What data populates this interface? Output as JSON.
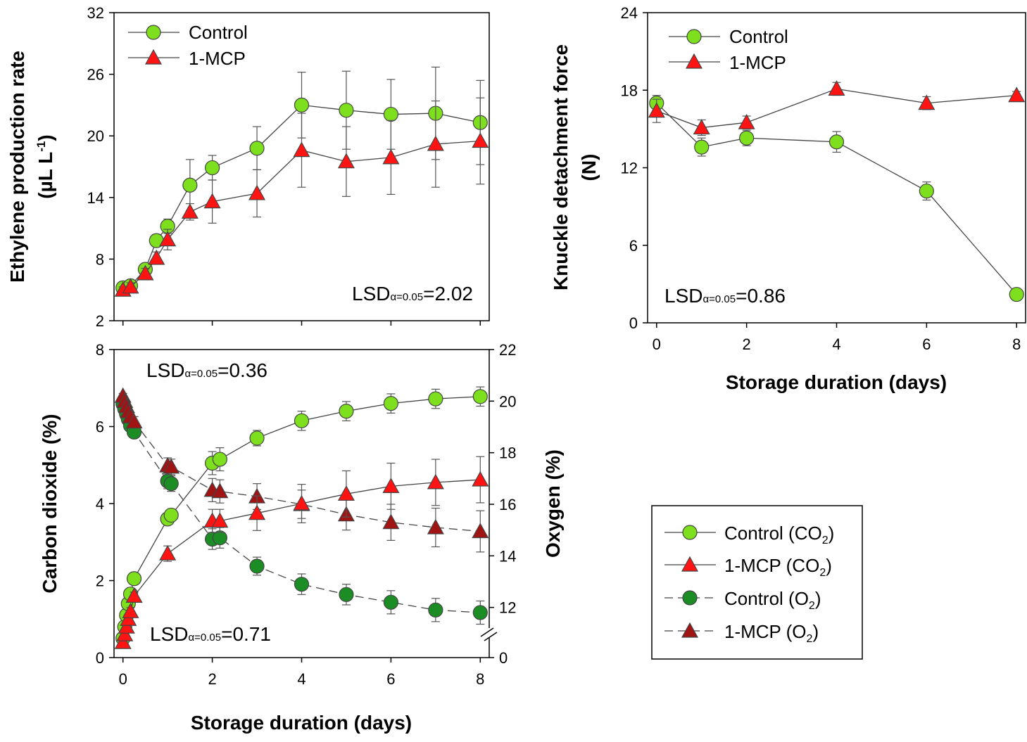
{
  "chart_data": [
    {
      "id": "A",
      "type": "line",
      "ylabel_line1": "Ethylene production rate",
      "ylabel_line2": "(µL L-1)",
      "ylabel_unit_base": "(µL L",
      "ylabel_unit_sup": "-1",
      "ylabel_unit_end": ")",
      "xlabel": "",
      "xlim": [
        -0.2,
        8.2
      ],
      "ylim": [
        2,
        32
      ],
      "yticks": [
        "2",
        "8",
        "14",
        "20",
        "26",
        "32"
      ],
      "legend": [
        "Control",
        "1-MCP"
      ],
      "lsd": {
        "base": "LSD",
        "sub": "α=0.05",
        "value": "=2.02"
      },
      "series": [
        {
          "name": "Control",
          "color": "#7ddf1e",
          "marker": "circle",
          "dash": "",
          "x": [
            0,
            0.17,
            0.5,
            0.75,
            1,
            1.5,
            2,
            3,
            4,
            5,
            6,
            7,
            8
          ],
          "y": [
            5.2,
            5.4,
            7.0,
            9.8,
            11.2,
            15.2,
            16.9,
            18.8,
            23.0,
            22.5,
            22.1,
            22.2,
            21.3
          ],
          "err": [
            0.3,
            0.4,
            0.5,
            0.6,
            0.7,
            2.5,
            1.2,
            2.1,
            3.2,
            3.8,
            3.4,
            4.5,
            4.1
          ]
        },
        {
          "name": "1-MCP",
          "color": "#ff1414",
          "marker": "triangle",
          "dash": "",
          "x": [
            0,
            0.17,
            0.5,
            0.75,
            1,
            1.5,
            2,
            3,
            4,
            5,
            6,
            7,
            8
          ],
          "y": [
            5.0,
            5.3,
            6.6,
            8.1,
            9.9,
            12.6,
            13.6,
            14.4,
            18.6,
            17.5,
            17.9,
            19.2,
            19.5
          ],
          "err": [
            0.3,
            0.4,
            0.5,
            0.6,
            1.0,
            0.8,
            2.1,
            2.3,
            3.6,
            3.4,
            3.6,
            4.2,
            4.2
          ]
        }
      ]
    },
    {
      "id": "B",
      "type": "line",
      "ylabel_line1": "Knuckle detachment force",
      "ylabel_line2": "(N)",
      "xlabel": "Storage duration (days)",
      "xlim": [
        -0.2,
        8.2
      ],
      "ylim": [
        0,
        24
      ],
      "xticks": [
        "0",
        "2",
        "4",
        "6",
        "8"
      ],
      "yticks": [
        "0",
        "6",
        "12",
        "18",
        "24"
      ],
      "legend": [
        "Control",
        "1-MCP"
      ],
      "lsd": {
        "base": "LSD",
        "sub": "α=0.05",
        "value": "=0.86"
      },
      "series": [
        {
          "name": "Control",
          "color": "#7ddf1e",
          "marker": "circle",
          "dash": "",
          "x": [
            0,
            1,
            2,
            4,
            6,
            8
          ],
          "y": [
            17.0,
            13.6,
            14.3,
            14.0,
            10.2,
            2.2
          ],
          "err": [
            0.6,
            0.7,
            0.6,
            0.8,
            0.7,
            0.3
          ]
        },
        {
          "name": "1-MCP",
          "color": "#ff1414",
          "marker": "triangle",
          "dash": "",
          "x": [
            0,
            1,
            2,
            4,
            6,
            8
          ],
          "y": [
            16.4,
            15.1,
            15.5,
            18.1,
            17.0,
            17.6
          ],
          "err": [
            0.9,
            0.6,
            0.5,
            0.5,
            0.5,
            0.3
          ]
        }
      ]
    },
    {
      "id": "C",
      "type": "line",
      "ylabel": "Carbon dioxide (%)",
      "y2label": "Oxygen (%)",
      "xlabel": "Storage duration (days)",
      "xlim": [
        -0.2,
        8.2
      ],
      "ylim": [
        0,
        8
      ],
      "y2lim": [
        0,
        22
      ],
      "y2_plot_range": [
        10,
        22
      ],
      "xticks": [
        "0",
        "2",
        "4",
        "6",
        "8"
      ],
      "yticks": [
        "0",
        "2",
        "4",
        "6",
        "8"
      ],
      "y2ticks": [
        "0",
        "12",
        "14",
        "16",
        "18",
        "20",
        "22"
      ],
      "lsd_top": {
        "base": "LSD",
        "sub": "α=0.05",
        "value": "=0.36"
      },
      "lsd_bottom": {
        "base": "LSD",
        "sub": "α=0.05",
        "value": "=0.71"
      },
      "series": [
        {
          "name": "Control (CO2)",
          "color": "#7ddf1e",
          "marker": "circle",
          "dash": "",
          "axis": "left",
          "x": [
            0,
            0.04,
            0.08,
            0.12,
            0.17,
            0.25,
            1,
            1.08,
            2,
            2.17,
            3,
            4,
            5,
            6,
            7,
            8
          ],
          "y": [
            0.5,
            0.8,
            1.1,
            1.4,
            1.65,
            2.05,
            3.6,
            3.7,
            5.05,
            5.15,
            5.7,
            6.15,
            6.4,
            6.6,
            6.72,
            6.78
          ],
          "err": [
            0.05,
            0.05,
            0.05,
            0.08,
            0.1,
            0.1,
            0.15,
            0.15,
            0.3,
            0.3,
            0.2,
            0.25,
            0.25,
            0.25,
            0.25,
            0.25
          ]
        },
        {
          "name": "1-MCP (CO2)",
          "color": "#ff1414",
          "marker": "triangle",
          "dash": "",
          "axis": "left",
          "x": [
            0,
            0.04,
            0.08,
            0.12,
            0.17,
            0.25,
            1,
            2,
            2.17,
            3,
            4,
            5,
            6,
            7,
            8
          ],
          "y": [
            0.4,
            0.6,
            0.8,
            1.0,
            1.2,
            1.6,
            2.7,
            3.55,
            3.55,
            3.75,
            4.0,
            4.25,
            4.45,
            4.55,
            4.62
          ],
          "err": [
            0.05,
            0.05,
            0.05,
            0.08,
            0.1,
            0.1,
            0.2,
            0.3,
            0.3,
            0.45,
            0.5,
            0.6,
            0.6,
            0.6,
            0.6
          ]
        },
        {
          "name": "Control (O2)",
          "color": "#1c8c24",
          "marker": "circle",
          "dash": "12,7",
          "axis": "right",
          "x": [
            0,
            0.04,
            0.08,
            0.12,
            0.17,
            0.25,
            1,
            1.08,
            2,
            2.17,
            3,
            4,
            5,
            6,
            7,
            8
          ],
          "y": [
            19.9,
            19.7,
            19.5,
            19.3,
            19.05,
            18.8,
            16.9,
            16.8,
            14.65,
            14.7,
            13.6,
            12.9,
            12.5,
            12.2,
            11.9,
            11.8
          ],
          "err": [
            0.1,
            0.1,
            0.1,
            0.1,
            0.15,
            0.2,
            0.3,
            0.3,
            0.4,
            0.4,
            0.35,
            0.4,
            0.4,
            0.45,
            0.45,
            0.45
          ]
        },
        {
          "name": "1-MCP (O2)",
          "color": "#a01414",
          "marker": "triangle",
          "dash": "12,7",
          "axis": "right",
          "x": [
            0,
            0.04,
            0.08,
            0.12,
            0.17,
            0.25,
            1,
            1.08,
            2,
            2.17,
            3,
            4,
            5,
            6,
            7,
            8
          ],
          "y": [
            20.2,
            20.0,
            19.8,
            19.6,
            19.4,
            19.2,
            17.5,
            17.45,
            16.55,
            16.5,
            16.3,
            16.0,
            15.6,
            15.3,
            15.1,
            14.95
          ],
          "err": [
            0.1,
            0.1,
            0.1,
            0.15,
            0.15,
            0.2,
            0.3,
            0.3,
            0.45,
            0.45,
            0.5,
            0.55,
            0.6,
            0.7,
            0.75,
            0.8
          ]
        }
      ]
    }
  ],
  "shared_legend": {
    "items": [
      {
        "label": "Control (CO2)",
        "base": "Control (CO",
        "sub": "2",
        "end": ")",
        "color": "#7ddf1e",
        "marker": "circle",
        "dash": ""
      },
      {
        "label": "1-MCP (CO2)",
        "base": "1-MCP (CO",
        "sub": "2",
        "end": ")",
        "color": "#ff1414",
        "marker": "triangle",
        "dash": ""
      },
      {
        "label": "Control (O2)",
        "base": "Control (O",
        "sub": "2",
        "end": ")",
        "color": "#1c8c24",
        "marker": "circle",
        "dash": "12,7"
      },
      {
        "label": "1-MCP (O2)",
        "base": "1-MCP (O",
        "sub": "2",
        "end": ")",
        "color": "#a01414",
        "marker": "triangle",
        "dash": "12,7"
      }
    ]
  }
}
